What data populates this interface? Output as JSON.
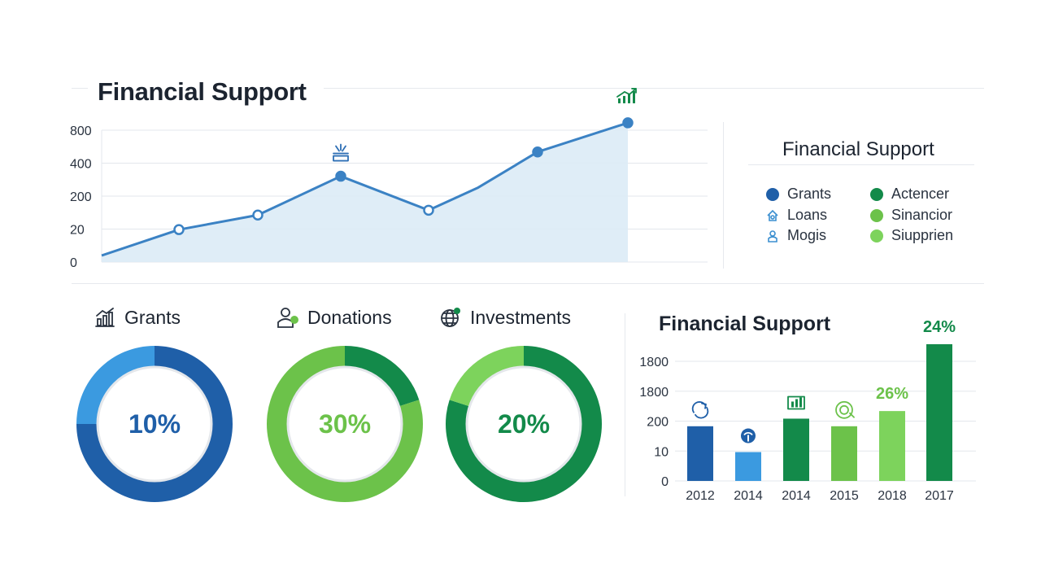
{
  "line_panel": {
    "title": "Financial Support"
  },
  "legend_panel": {
    "title": "Financial Support",
    "items": [
      {
        "label": "Grants",
        "color": "#1f5fa8",
        "marker": "dot"
      },
      {
        "label": "Loans",
        "color": "#3b8fd0",
        "marker": "house-icon"
      },
      {
        "label": "Mogis",
        "color": "#3b8fd0",
        "marker": "person-icon"
      },
      {
        "label": "Actencer",
        "color": "#138a4a",
        "marker": "dot"
      },
      {
        "label": "Sinancior",
        "color": "#6cc24a",
        "marker": "dot"
      },
      {
        "label": "Siupprien",
        "color": "#7dd35c",
        "marker": "dot"
      }
    ]
  },
  "donuts": [
    {
      "title": "Grants",
      "icon": "bar-chart-icon",
      "value_label": "10%",
      "label_color": "#1f5fa8",
      "segments": [
        {
          "fraction": 0.5,
          "color": "#1f5fa8"
        },
        {
          "fraction": 0.25,
          "color": "#1f5fa8"
        },
        {
          "fraction": 0.25,
          "color": "#3b9ae0"
        }
      ]
    },
    {
      "title": "Donations",
      "icon": "donation-icon",
      "value_label": "30%",
      "label_color": "#6cc24a",
      "segments": [
        {
          "fraction": 0.2,
          "color": "#138a4a"
        },
        {
          "fraction": 0.8,
          "color": "#6cc24a"
        }
      ]
    },
    {
      "title": "Investments",
      "icon": "globe-icon",
      "value_label": "20%",
      "label_color": "#138a4a",
      "segments": [
        {
          "fraction": 0.8,
          "color": "#138a4a"
        },
        {
          "fraction": 0.2,
          "color": "#7dd35c"
        }
      ]
    }
  ],
  "bar_panel": {
    "title": "Financial Support"
  },
  "chart_data": [
    {
      "type": "area",
      "title": "Financial Support",
      "y_tick_labels": [
        "0",
        "20",
        "200",
        "400",
        "800"
      ],
      "series": [
        {
          "values": [
            0,
            0.8,
            1.25,
            2.45,
            1.4,
            2.1,
            3.2,
            4.1
          ],
          "markers": [
            false,
            true,
            true,
            true,
            true,
            false,
            true,
            true
          ],
          "color": "#3b82c4",
          "fill": "#dcebf6"
        }
      ],
      "annotations": [
        {
          "at_index": 3,
          "icon": "sparkle-box-icon"
        },
        {
          "at_index": 7,
          "icon": "growth-chart-icon"
        }
      ],
      "grid": true
    },
    {
      "type": "bar",
      "title": "Financial Support",
      "categories": [
        "2012",
        "2014",
        "2014",
        "2015",
        "2018",
        "2017"
      ],
      "y_tick_labels": [
        "0",
        "10",
        "200",
        "1800",
        "1800"
      ],
      "values": [
        1.8,
        0.95,
        2.05,
        1.8,
        2.3,
        4.5
      ],
      "colors": [
        "#1f5fa8",
        "#3b9ae0",
        "#138a4a",
        "#6cc24a",
        "#7dd35c",
        "#138a4a"
      ],
      "bar_icons": [
        "refresh-icon",
        "signal-icon",
        "bar-chart-icon",
        "coin-icon",
        "",
        ""
      ],
      "data_labels": [
        "",
        "",
        "",
        "",
        "26%",
        "24%"
      ],
      "data_label_colors": [
        "",
        "",
        "",
        "",
        "#6cc24a",
        "#138a4a"
      ],
      "grid": true
    }
  ]
}
